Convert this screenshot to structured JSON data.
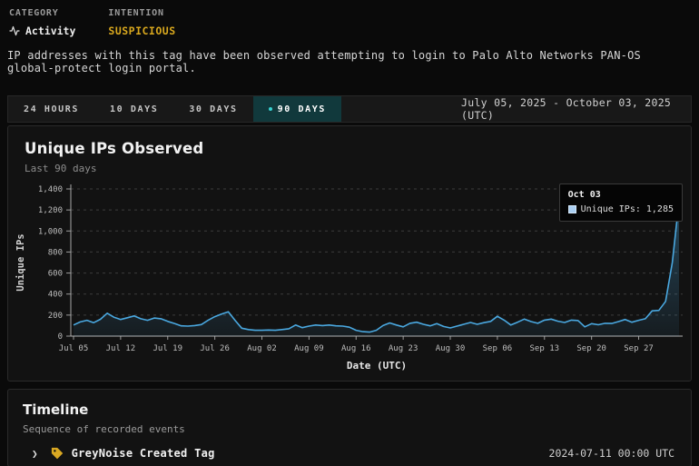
{
  "meta": {
    "category_label": "CATEGORY",
    "category_value": "Activity",
    "intention_label": "INTENTION",
    "intention_value": "SUSPICIOUS"
  },
  "description": "IP addresses with this tag have been observed attempting to login to Palo Alto Networks PAN-OS global-protect login portal.",
  "range_bar": {
    "tabs": [
      {
        "label": "24 HOURS",
        "selected": false
      },
      {
        "label": "10 DAYS",
        "selected": false
      },
      {
        "label": "30 DAYS",
        "selected": false
      },
      {
        "label": "90 DAYS",
        "selected": true
      }
    ],
    "date_range": "July 05, 2025 - October 03, 2025 (UTC)"
  },
  "chart": {
    "title": "Unique IPs Observed",
    "subtitle": "Last 90 days"
  },
  "chart_data": {
    "type": "area",
    "title": "Unique IPs Observed",
    "xlabel": "Date (UTC)",
    "ylabel": "Unique IPs",
    "ylim": [
      0,
      1400
    ],
    "y_ticks": [
      "0",
      "200",
      "400",
      "600",
      "800",
      "1,000",
      "1,200",
      "1,400"
    ],
    "x_tick_labels": [
      "Jul 05",
      "Jul 12",
      "Jul 19",
      "Jul 26",
      "Aug 02",
      "Aug 09",
      "Aug 16",
      "Aug 23",
      "Aug 30",
      "Sep 06",
      "Sep 13",
      "Sep 20",
      "Sep 27"
    ],
    "x_tick_every": 7,
    "x_range": [
      "Jul 05",
      "Oct 03"
    ],
    "series": [
      {
        "name": "Unique IPs",
        "values": [
          105,
          135,
          150,
          128,
          160,
          218,
          180,
          158,
          175,
          192,
          165,
          150,
          172,
          165,
          140,
          120,
          98,
          95,
          100,
          110,
          150,
          185,
          210,
          232,
          150,
          75,
          62,
          55,
          55,
          58,
          55,
          62,
          70,
          105,
          80,
          95,
          105,
          100,
          105,
          98,
          95,
          85,
          55,
          42,
          38,
          55,
          100,
          125,
          105,
          88,
          122,
          132,
          112,
          98,
          118,
          92,
          78,
          95,
          112,
          130,
          112,
          128,
          140,
          188,
          152,
          105,
          132,
          162,
          138,
          122,
          152,
          162,
          142,
          130,
          152,
          148,
          88,
          118,
          108,
          122,
          120,
          138,
          158,
          132,
          150,
          165,
          240,
          245,
          330,
          700,
          1285
        ]
      }
    ],
    "grid": true,
    "legend_position": "none",
    "line_color": "#4aa8e0",
    "tooltip": {
      "date": "Oct 03",
      "text": "Unique IPs: 1,285",
      "value": 1285
    }
  },
  "timeline": {
    "title": "Timeline",
    "subtitle": "Sequence of recorded events",
    "events": [
      {
        "label": "GreyNoise Created Tag",
        "timestamp": "2024-07-11 00:00 UTC"
      }
    ]
  },
  "icons": {
    "chevron": "❯"
  },
  "colors": {
    "accent_line": "#4aa8e0",
    "suspicious_gold": "#d9a81e",
    "selected_tab_bg": "#11393c",
    "selected_tab_dot": "#38d2d2",
    "tooltip_swatch": "#a9cef1",
    "tag_icon_gold": "#d9a823"
  }
}
